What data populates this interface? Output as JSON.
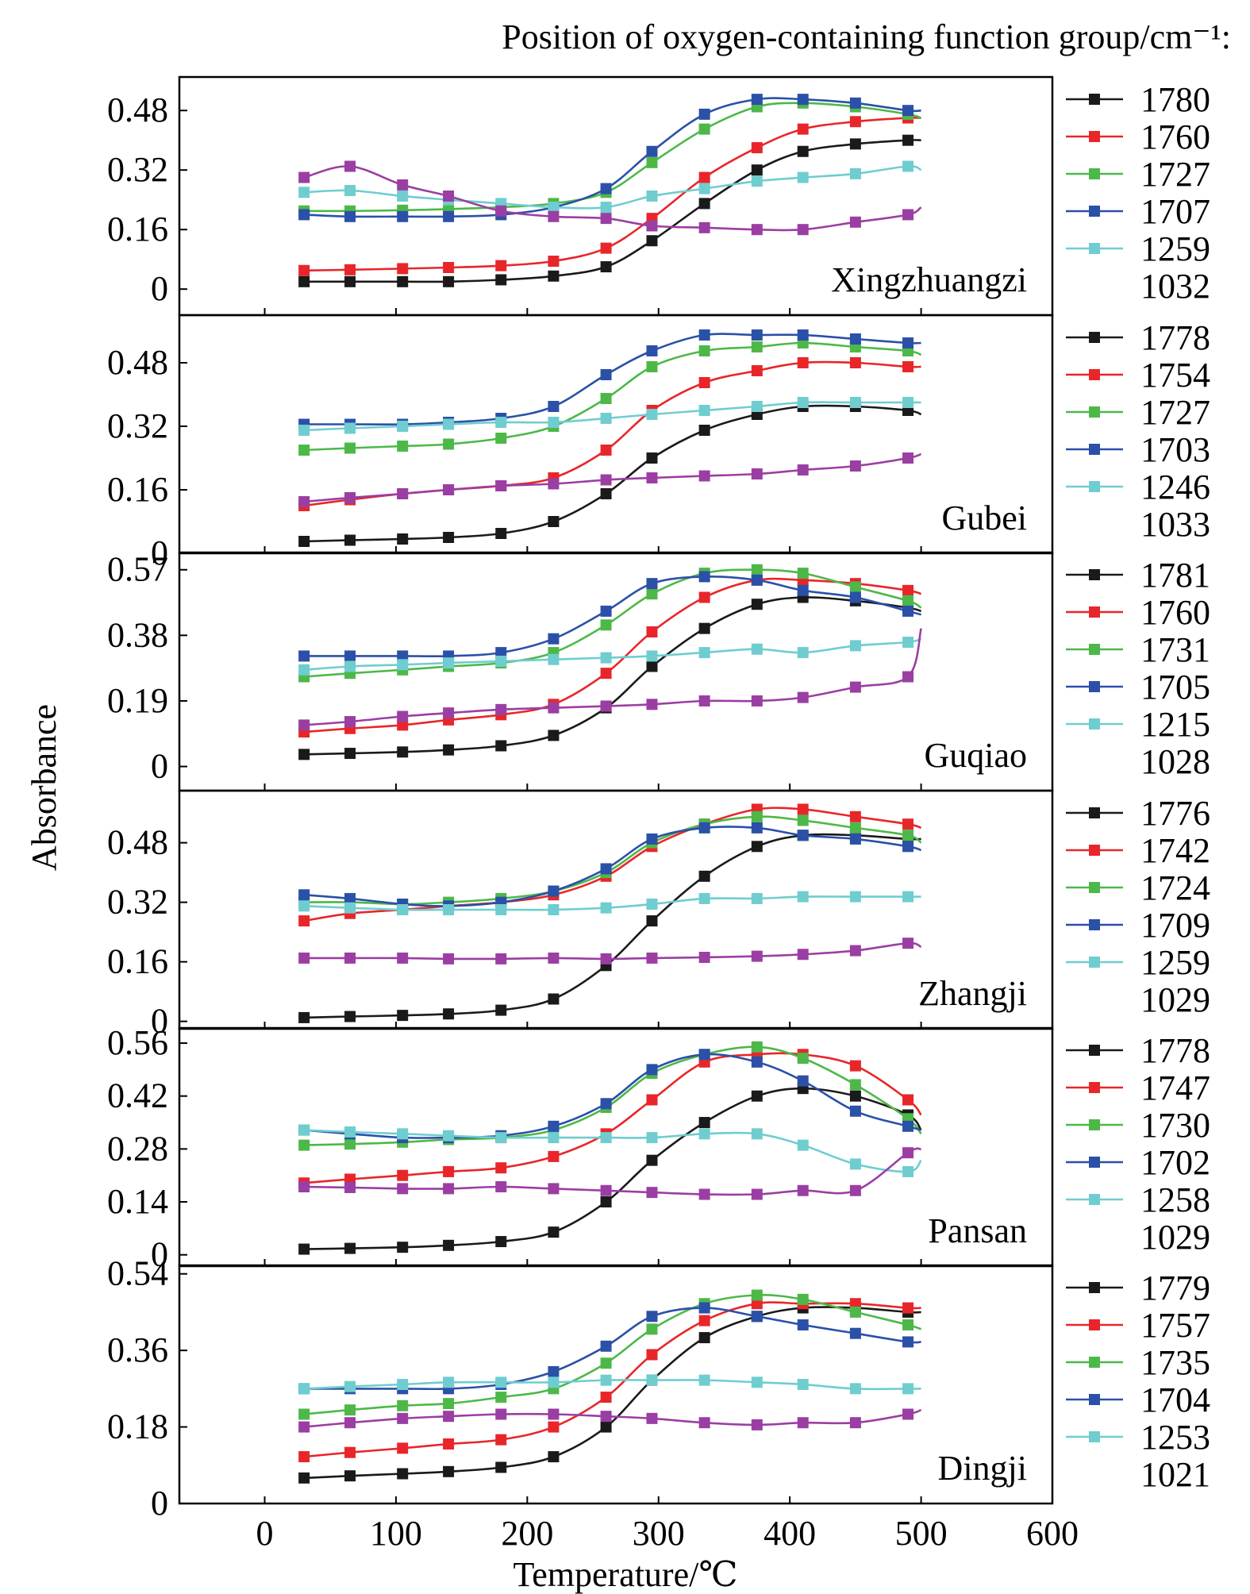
{
  "figure": {
    "legend_title": "Position of oxygen-containing function group/cm⁻¹:",
    "ylabel": "Absorbance",
    "xlabel": "Temperature/℃",
    "x_ticks": [
      0,
      100,
      200,
      300,
      400,
      500,
      600
    ]
  },
  "chart_data": [
    {
      "type": "line",
      "panel": "Xingzhuangzi",
      "xlabel": "Temperature/℃",
      "ylabel": "Absorbance",
      "xlim": [
        -65,
        600
      ],
      "ylim": [
        -0.07,
        0.57
      ],
      "yticks": [
        0,
        0.16,
        0.32,
        0.48
      ],
      "x": [
        30,
        65,
        105,
        140,
        180,
        220,
        260,
        295,
        335,
        375,
        410,
        450,
        490,
        500
      ],
      "series": [
        {
          "name": "1780",
          "color": "#1a1a1a",
          "values": [
            0.02,
            0.02,
            0.02,
            0.02,
            0.025,
            0.035,
            0.06,
            0.13,
            0.23,
            0.32,
            0.37,
            0.39,
            0.4,
            0.4
          ]
        },
        {
          "name": "1760",
          "color": "#e8262a",
          "values": [
            0.05,
            0.052,
            0.055,
            0.058,
            0.063,
            0.075,
            0.11,
            0.19,
            0.3,
            0.38,
            0.43,
            0.45,
            0.46,
            0.46
          ]
        },
        {
          "name": "1727",
          "color": "#4db848",
          "values": [
            0.21,
            0.21,
            0.212,
            0.215,
            0.22,
            0.23,
            0.26,
            0.34,
            0.43,
            0.49,
            0.5,
            0.49,
            0.47,
            0.46
          ]
        },
        {
          "name": "1707",
          "color": "#2b50a8",
          "values": [
            0.2,
            0.195,
            0.195,
            0.195,
            0.2,
            0.22,
            0.27,
            0.37,
            0.47,
            0.51,
            0.51,
            0.5,
            0.48,
            0.48
          ]
        },
        {
          "name": "1259",
          "color": "#6fcdd0",
          "values": [
            0.26,
            0.265,
            0.25,
            0.24,
            0.23,
            0.22,
            0.22,
            0.25,
            0.27,
            0.29,
            0.3,
            0.31,
            0.33,
            0.32
          ]
        },
        {
          "name": "1032",
          "color": "#9b3ea3",
          "values": [
            0.3,
            0.33,
            0.28,
            0.25,
            0.21,
            0.195,
            0.19,
            0.17,
            0.165,
            0.16,
            0.16,
            0.18,
            0.2,
            0.22
          ]
        }
      ]
    },
    {
      "type": "line",
      "panel": "Gubei",
      "xlabel": "Temperature/℃",
      "ylabel": "Absorbance",
      "xlim": [
        -65,
        600
      ],
      "ylim": [
        0,
        0.6
      ],
      "yticks": [
        0,
        0.16,
        0.32,
        0.48
      ],
      "x": [
        30,
        65,
        105,
        140,
        180,
        220,
        260,
        295,
        335,
        375,
        410,
        450,
        490,
        500
      ],
      "series": [
        {
          "name": "1778",
          "color": "#1a1a1a",
          "values": [
            0.03,
            0.033,
            0.036,
            0.04,
            0.05,
            0.08,
            0.15,
            0.24,
            0.31,
            0.35,
            0.37,
            0.37,
            0.36,
            0.35
          ]
        },
        {
          "name": "1754",
          "color": "#e8262a",
          "values": [
            0.12,
            0.135,
            0.15,
            0.16,
            0.17,
            0.19,
            0.26,
            0.36,
            0.43,
            0.46,
            0.48,
            0.48,
            0.47,
            0.47
          ]
        },
        {
          "name": "1727",
          "color": "#4db848",
          "values": [
            0.26,
            0.265,
            0.27,
            0.275,
            0.29,
            0.32,
            0.39,
            0.47,
            0.51,
            0.52,
            0.53,
            0.52,
            0.51,
            0.5
          ]
        },
        {
          "name": "1703",
          "color": "#2b50a8",
          "values": [
            0.325,
            0.325,
            0.325,
            0.33,
            0.34,
            0.37,
            0.45,
            0.51,
            0.55,
            0.55,
            0.55,
            0.54,
            0.53,
            0.53
          ]
        },
        {
          "name": "1246",
          "color": "#6fcdd0",
          "values": [
            0.31,
            0.315,
            0.32,
            0.325,
            0.33,
            0.33,
            0.34,
            0.35,
            0.36,
            0.37,
            0.38,
            0.38,
            0.38,
            0.38
          ]
        },
        {
          "name": "1033",
          "color": "#9b3ea3",
          "values": [
            0.13,
            0.14,
            0.15,
            0.16,
            0.17,
            0.175,
            0.185,
            0.19,
            0.195,
            0.2,
            0.21,
            0.22,
            0.24,
            0.25
          ]
        }
      ]
    },
    {
      "type": "line",
      "panel": "Guqiao",
      "xlabel": "Temperature/℃",
      "ylabel": "Absorbance",
      "xlim": [
        -65,
        600
      ],
      "ylim": [
        -0.07,
        0.62
      ],
      "yticks": [
        0,
        0.19,
        0.38,
        0.57
      ],
      "x": [
        30,
        65,
        105,
        140,
        180,
        220,
        260,
        295,
        335,
        375,
        410,
        450,
        490,
        500
      ],
      "series": [
        {
          "name": "1781",
          "color": "#1a1a1a",
          "values": [
            0.035,
            0.038,
            0.042,
            0.048,
            0.06,
            0.09,
            0.17,
            0.29,
            0.4,
            0.47,
            0.49,
            0.48,
            0.46,
            0.45
          ]
        },
        {
          "name": "1760",
          "color": "#e8262a",
          "values": [
            0.1,
            0.11,
            0.12,
            0.135,
            0.15,
            0.18,
            0.27,
            0.39,
            0.49,
            0.54,
            0.54,
            0.53,
            0.51,
            0.5
          ]
        },
        {
          "name": "1731",
          "color": "#4db848",
          "values": [
            0.26,
            0.27,
            0.28,
            0.29,
            0.3,
            0.33,
            0.41,
            0.5,
            0.56,
            0.57,
            0.56,
            0.52,
            0.48,
            0.46
          ]
        },
        {
          "name": "1705",
          "color": "#2b50a8",
          "values": [
            0.32,
            0.32,
            0.32,
            0.32,
            0.33,
            0.37,
            0.45,
            0.53,
            0.55,
            0.54,
            0.51,
            0.49,
            0.45,
            0.44
          ]
        },
        {
          "name": "1215",
          "color": "#6fcdd0",
          "values": [
            0.28,
            0.29,
            0.295,
            0.3,
            0.305,
            0.31,
            0.315,
            0.32,
            0.33,
            0.34,
            0.33,
            0.35,
            0.36,
            0.37
          ]
        },
        {
          "name": "1028",
          "color": "#9b3ea3",
          "values": [
            0.12,
            0.13,
            0.145,
            0.155,
            0.165,
            0.17,
            0.175,
            0.18,
            0.19,
            0.19,
            0.2,
            0.23,
            0.26,
            0.4
          ]
        }
      ]
    },
    {
      "type": "line",
      "panel": "Zhangji",
      "xlabel": "Temperature/℃",
      "ylabel": "Absorbance",
      "xlim": [
        -65,
        600
      ],
      "ylim": [
        -0.02,
        0.62
      ],
      "yticks": [
        0,
        0.16,
        0.32,
        0.48
      ],
      "x": [
        30,
        65,
        105,
        140,
        180,
        220,
        260,
        295,
        335,
        375,
        410,
        450,
        490,
        500
      ],
      "series": [
        {
          "name": "1776",
          "color": "#1a1a1a",
          "values": [
            0.01,
            0.013,
            0.016,
            0.02,
            0.03,
            0.06,
            0.15,
            0.27,
            0.39,
            0.47,
            0.5,
            0.5,
            0.49,
            0.49
          ]
        },
        {
          "name": "1742",
          "color": "#e8262a",
          "values": [
            0.27,
            0.29,
            0.3,
            0.31,
            0.32,
            0.34,
            0.39,
            0.47,
            0.53,
            0.57,
            0.57,
            0.55,
            0.53,
            0.52
          ]
        },
        {
          "name": "1724",
          "color": "#4db848",
          "values": [
            0.32,
            0.32,
            0.315,
            0.32,
            0.33,
            0.35,
            0.4,
            0.48,
            0.53,
            0.55,
            0.54,
            0.52,
            0.5,
            0.48
          ]
        },
        {
          "name": "1709",
          "color": "#2b50a8",
          "values": [
            0.34,
            0.33,
            0.315,
            0.31,
            0.32,
            0.35,
            0.41,
            0.49,
            0.52,
            0.52,
            0.5,
            0.49,
            0.47,
            0.46
          ]
        },
        {
          "name": "1259",
          "color": "#6fcdd0",
          "values": [
            0.31,
            0.305,
            0.3,
            0.3,
            0.3,
            0.3,
            0.305,
            0.315,
            0.33,
            0.33,
            0.335,
            0.335,
            0.335,
            0.335
          ]
        },
        {
          "name": "1029",
          "color": "#9b3ea3",
          "values": [
            0.17,
            0.17,
            0.17,
            0.168,
            0.168,
            0.17,
            0.168,
            0.17,
            0.172,
            0.175,
            0.18,
            0.19,
            0.21,
            0.2
          ]
        }
      ]
    },
    {
      "type": "line",
      "panel": "Pansan",
      "xlabel": "Temperature/℃",
      "ylabel": "Absorbance",
      "xlim": [
        -65,
        600
      ],
      "ylim": [
        -0.03,
        0.6
      ],
      "yticks": [
        0,
        0.14,
        0.28,
        0.42,
        0.56
      ],
      "x": [
        30,
        65,
        105,
        140,
        180,
        220,
        260,
        295,
        335,
        375,
        410,
        450,
        490,
        500
      ],
      "series": [
        {
          "name": "1778",
          "color": "#1a1a1a",
          "values": [
            0.015,
            0.017,
            0.02,
            0.025,
            0.035,
            0.06,
            0.14,
            0.25,
            0.35,
            0.42,
            0.44,
            0.42,
            0.37,
            0.33
          ]
        },
        {
          "name": "1747",
          "color": "#e8262a",
          "values": [
            0.19,
            0.2,
            0.21,
            0.22,
            0.23,
            0.26,
            0.32,
            0.41,
            0.51,
            0.53,
            0.53,
            0.5,
            0.41,
            0.37
          ]
        },
        {
          "name": "1730",
          "color": "#4db848",
          "values": [
            0.29,
            0.293,
            0.298,
            0.305,
            0.31,
            0.33,
            0.39,
            0.48,
            0.53,
            0.55,
            0.52,
            0.45,
            0.36,
            0.32
          ]
        },
        {
          "name": "1702",
          "color": "#2b50a8",
          "values": [
            0.33,
            0.32,
            0.31,
            0.31,
            0.315,
            0.34,
            0.4,
            0.49,
            0.53,
            0.51,
            0.46,
            0.38,
            0.34,
            0.33
          ]
        },
        {
          "name": "1258",
          "color": "#6fcdd0",
          "values": [
            0.33,
            0.325,
            0.32,
            0.315,
            0.31,
            0.31,
            0.31,
            0.31,
            0.32,
            0.32,
            0.29,
            0.24,
            0.22,
            0.25
          ]
        },
        {
          "name": "1029",
          "color": "#9b3ea3",
          "values": [
            0.18,
            0.178,
            0.175,
            0.175,
            0.18,
            0.175,
            0.17,
            0.165,
            0.16,
            0.16,
            0.17,
            0.17,
            0.27,
            0.28
          ]
        }
      ]
    },
    {
      "type": "line",
      "panel": "Dingji",
      "xlabel": "Temperature/℃",
      "ylabel": "Absorbance",
      "xlim": [
        -65,
        600
      ],
      "ylim": [
        0,
        0.56
      ],
      "yticks": [
        0,
        0.18,
        0.36,
        0.54
      ],
      "x": [
        30,
        65,
        105,
        140,
        180,
        220,
        260,
        295,
        335,
        375,
        410,
        450,
        490,
        500
      ],
      "series": [
        {
          "name": "1779",
          "color": "#1a1a1a",
          "values": [
            0.06,
            0.065,
            0.07,
            0.075,
            0.085,
            0.11,
            0.18,
            0.29,
            0.39,
            0.44,
            0.46,
            0.46,
            0.45,
            0.45
          ]
        },
        {
          "name": "1757",
          "color": "#e8262a",
          "values": [
            0.11,
            0.12,
            0.13,
            0.14,
            0.15,
            0.18,
            0.25,
            0.35,
            0.43,
            0.47,
            0.47,
            0.47,
            0.46,
            0.46
          ]
        },
        {
          "name": "1735",
          "color": "#4db848",
          "values": [
            0.21,
            0.22,
            0.23,
            0.235,
            0.25,
            0.27,
            0.33,
            0.41,
            0.47,
            0.49,
            0.48,
            0.45,
            0.42,
            0.41
          ]
        },
        {
          "name": "1704",
          "color": "#2b50a8",
          "values": [
            0.27,
            0.27,
            0.27,
            0.27,
            0.28,
            0.31,
            0.37,
            0.44,
            0.46,
            0.44,
            0.42,
            0.4,
            0.38,
            0.38
          ]
        },
        {
          "name": "1253",
          "color": "#6fcdd0",
          "values": [
            0.27,
            0.275,
            0.28,
            0.285,
            0.285,
            0.285,
            0.29,
            0.29,
            0.29,
            0.285,
            0.28,
            0.27,
            0.27,
            0.27
          ]
        },
        {
          "name": "1021",
          "color": "#9b3ea3",
          "values": [
            0.18,
            0.19,
            0.2,
            0.205,
            0.21,
            0.21,
            0.205,
            0.2,
            0.19,
            0.185,
            0.19,
            0.19,
            0.21,
            0.22
          ]
        }
      ]
    }
  ]
}
